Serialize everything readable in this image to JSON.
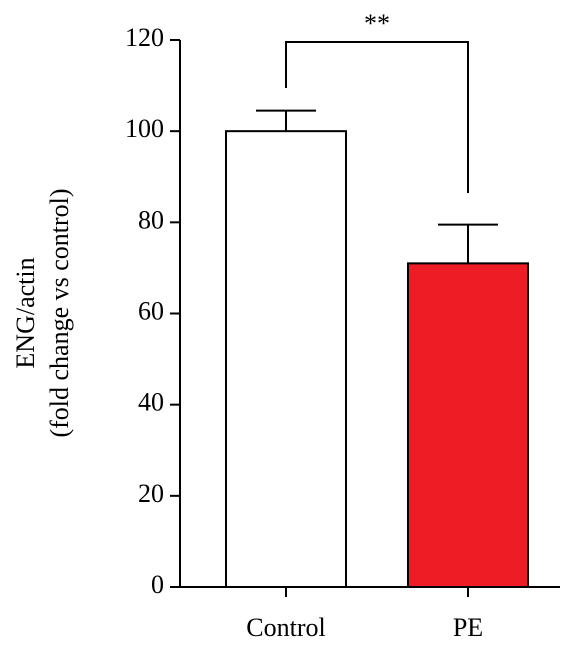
{
  "chart_data": {
    "type": "bar",
    "ylabel": [
      "ENG/actin",
      "(fold change vs control)"
    ],
    "categories": [
      "Control",
      "PE"
    ],
    "values": [
      100,
      71
    ],
    "errors": [
      4.5,
      8.5
    ],
    "colors": [
      "#ffffff",
      "#ee1c25"
    ],
    "annotation": "**",
    "ylim": [
      0,
      120
    ],
    "yticks": [
      0,
      20,
      40,
      60,
      80,
      100,
      120
    ]
  }
}
